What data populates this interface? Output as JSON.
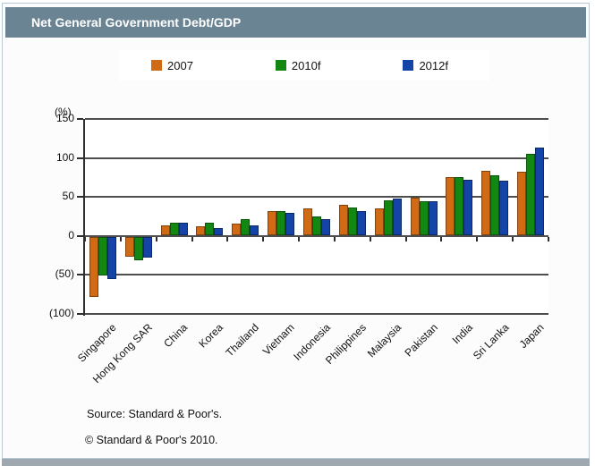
{
  "header": {
    "title": "Net General Government Debt/GDP"
  },
  "footer": {
    "source": "Source: Standard & Poor's.",
    "copyright": "© Standard & Poor's 2010."
  },
  "colors": {
    "header_bg": "#6b8494",
    "frame_border": "#b7c9d4",
    "bottom_bar": "#9fa8af",
    "gridline": "#4e4e4e",
    "series_2007": "#d06a15",
    "series_2010f": "#128712",
    "series_2012f": "#1544a8"
  },
  "chart_data": {
    "type": "bar",
    "title": "Net General Government Debt/GDP",
    "xlabel": "",
    "ylabel": "(%)",
    "ylim": [
      -100,
      150
    ],
    "grid": true,
    "legend_position": "top",
    "yticks": [
      {
        "v": 150,
        "label": "150"
      },
      {
        "v": 100,
        "label": "100"
      },
      {
        "v": 50,
        "label": "50"
      },
      {
        "v": 0,
        "label": "0"
      },
      {
        "v": -50,
        "label": "(50)"
      },
      {
        "v": -100,
        "label": "(100)"
      }
    ],
    "categories": [
      "Singapore",
      "Hong Kong SAR",
      "China",
      "Korea",
      "Thailand",
      "Vietnam",
      "Indonesia",
      "Philippines",
      "Malaysia",
      "Pakistan",
      "India",
      "Sri Lanka",
      "Japan"
    ],
    "series": [
      {
        "name": "2007",
        "color": "#d06a15",
        "values": [
          -78,
          -27,
          14,
          12,
          16,
          32,
          35,
          40,
          35,
          49,
          75,
          83,
          82
        ]
      },
      {
        "name": "2010f",
        "color": "#128712",
        "values": [
          -51,
          -31,
          17,
          17,
          21,
          32,
          25,
          37,
          46,
          45,
          76,
          78,
          105
        ]
      },
      {
        "name": "2012f",
        "color": "#1544a8",
        "values": [
          -55,
          -28,
          17,
          10,
          13,
          30,
          22,
          32,
          48,
          45,
          72,
          71,
          113
        ]
      }
    ]
  }
}
